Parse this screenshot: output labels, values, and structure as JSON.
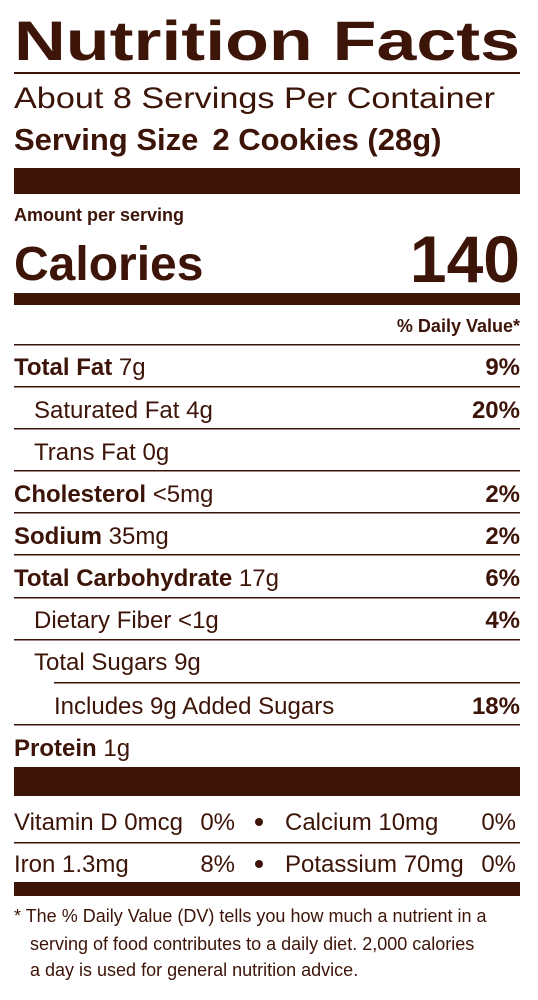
{
  "header": {
    "title": "Nutrition Facts",
    "servings": "About 8 Servings Per Container",
    "serving_size_label": "Serving Size",
    "serving_size_value": "2 Cookies (28g)"
  },
  "calories": {
    "amount_per_serving": "Amount per serving",
    "label": "Calories",
    "value": "140"
  },
  "daily_value_header": "% Daily Value*",
  "nutrients": [
    {
      "name": "Total Fat",
      "amount": "7g",
      "dv": "9%"
    },
    {
      "name": "Saturated Fat",
      "amount": "4g",
      "dv": "20%"
    },
    {
      "name": "Trans Fat",
      "amount": "0g"
    },
    {
      "name": "Cholesterol",
      "amount": "<5mg",
      "dv": "2%"
    },
    {
      "name": "Sodium",
      "amount": "35mg",
      "dv": "2%"
    },
    {
      "name": "Total Carbohydrate",
      "amount": "17g",
      "dv": "6%"
    },
    {
      "name": "Dietary Fiber",
      "amount": "<1g",
      "dv": "4%"
    },
    {
      "name": "Total Sugars",
      "amount": "9g"
    },
    {
      "name": "Includes 9g Added Sugars",
      "dv": "18%"
    },
    {
      "name": "Protein",
      "amount": "1g"
    }
  ],
  "vitamins": [
    {
      "name": "Vitamin D 0mcg",
      "dv": "0%"
    },
    {
      "name": "Calcium 10mg",
      "dv": "0%"
    },
    {
      "name": "Iron 1.3mg",
      "dv": "8%"
    },
    {
      "name": "Potassium 70mg",
      "dv": "0%"
    }
  ],
  "footnote": [
    "* The % Daily Value (DV) tells you how much a nutrient in a",
    "serving of food contributes to a daily diet. 2,000 calories",
    "a day is used for general nutrition advice."
  ]
}
